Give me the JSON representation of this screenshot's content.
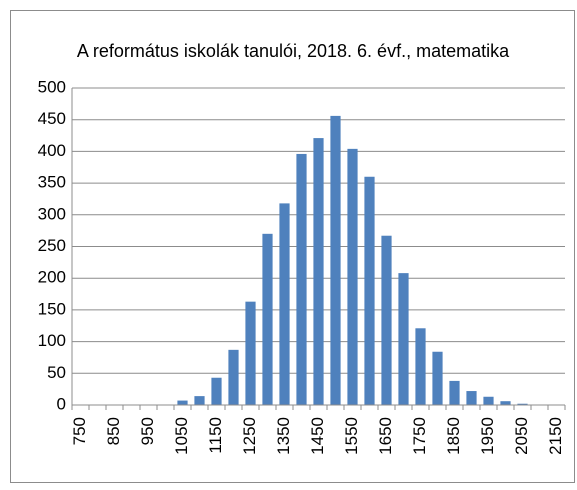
{
  "chart_data": {
    "type": "bar",
    "title": "A református iskolák tanulói, 2018. 6. évf., matematika",
    "categories": [
      "750",
      null,
      "850",
      null,
      "950",
      null,
      "1050",
      null,
      "1150",
      null,
      "1250",
      null,
      "1350",
      null,
      "1450",
      null,
      "1550",
      null,
      "1650",
      null,
      "1750",
      null,
      "1850",
      null,
      "1950",
      null,
      "2050",
      null,
      "2150"
    ],
    "values": [
      0,
      0,
      0,
      0,
      0,
      0,
      7,
      14,
      43,
      87,
      163,
      270,
      318,
      396,
      421,
      456,
      404,
      360,
      267,
      208,
      121,
      84,
      38,
      22,
      13,
      6,
      2,
      0,
      0
    ],
    "color": "#4f81bd",
    "ylim": [
      0,
      500
    ],
    "yticks": [
      0,
      50,
      100,
      150,
      200,
      250,
      300,
      350,
      400,
      450,
      500
    ],
    "grid": true
  }
}
